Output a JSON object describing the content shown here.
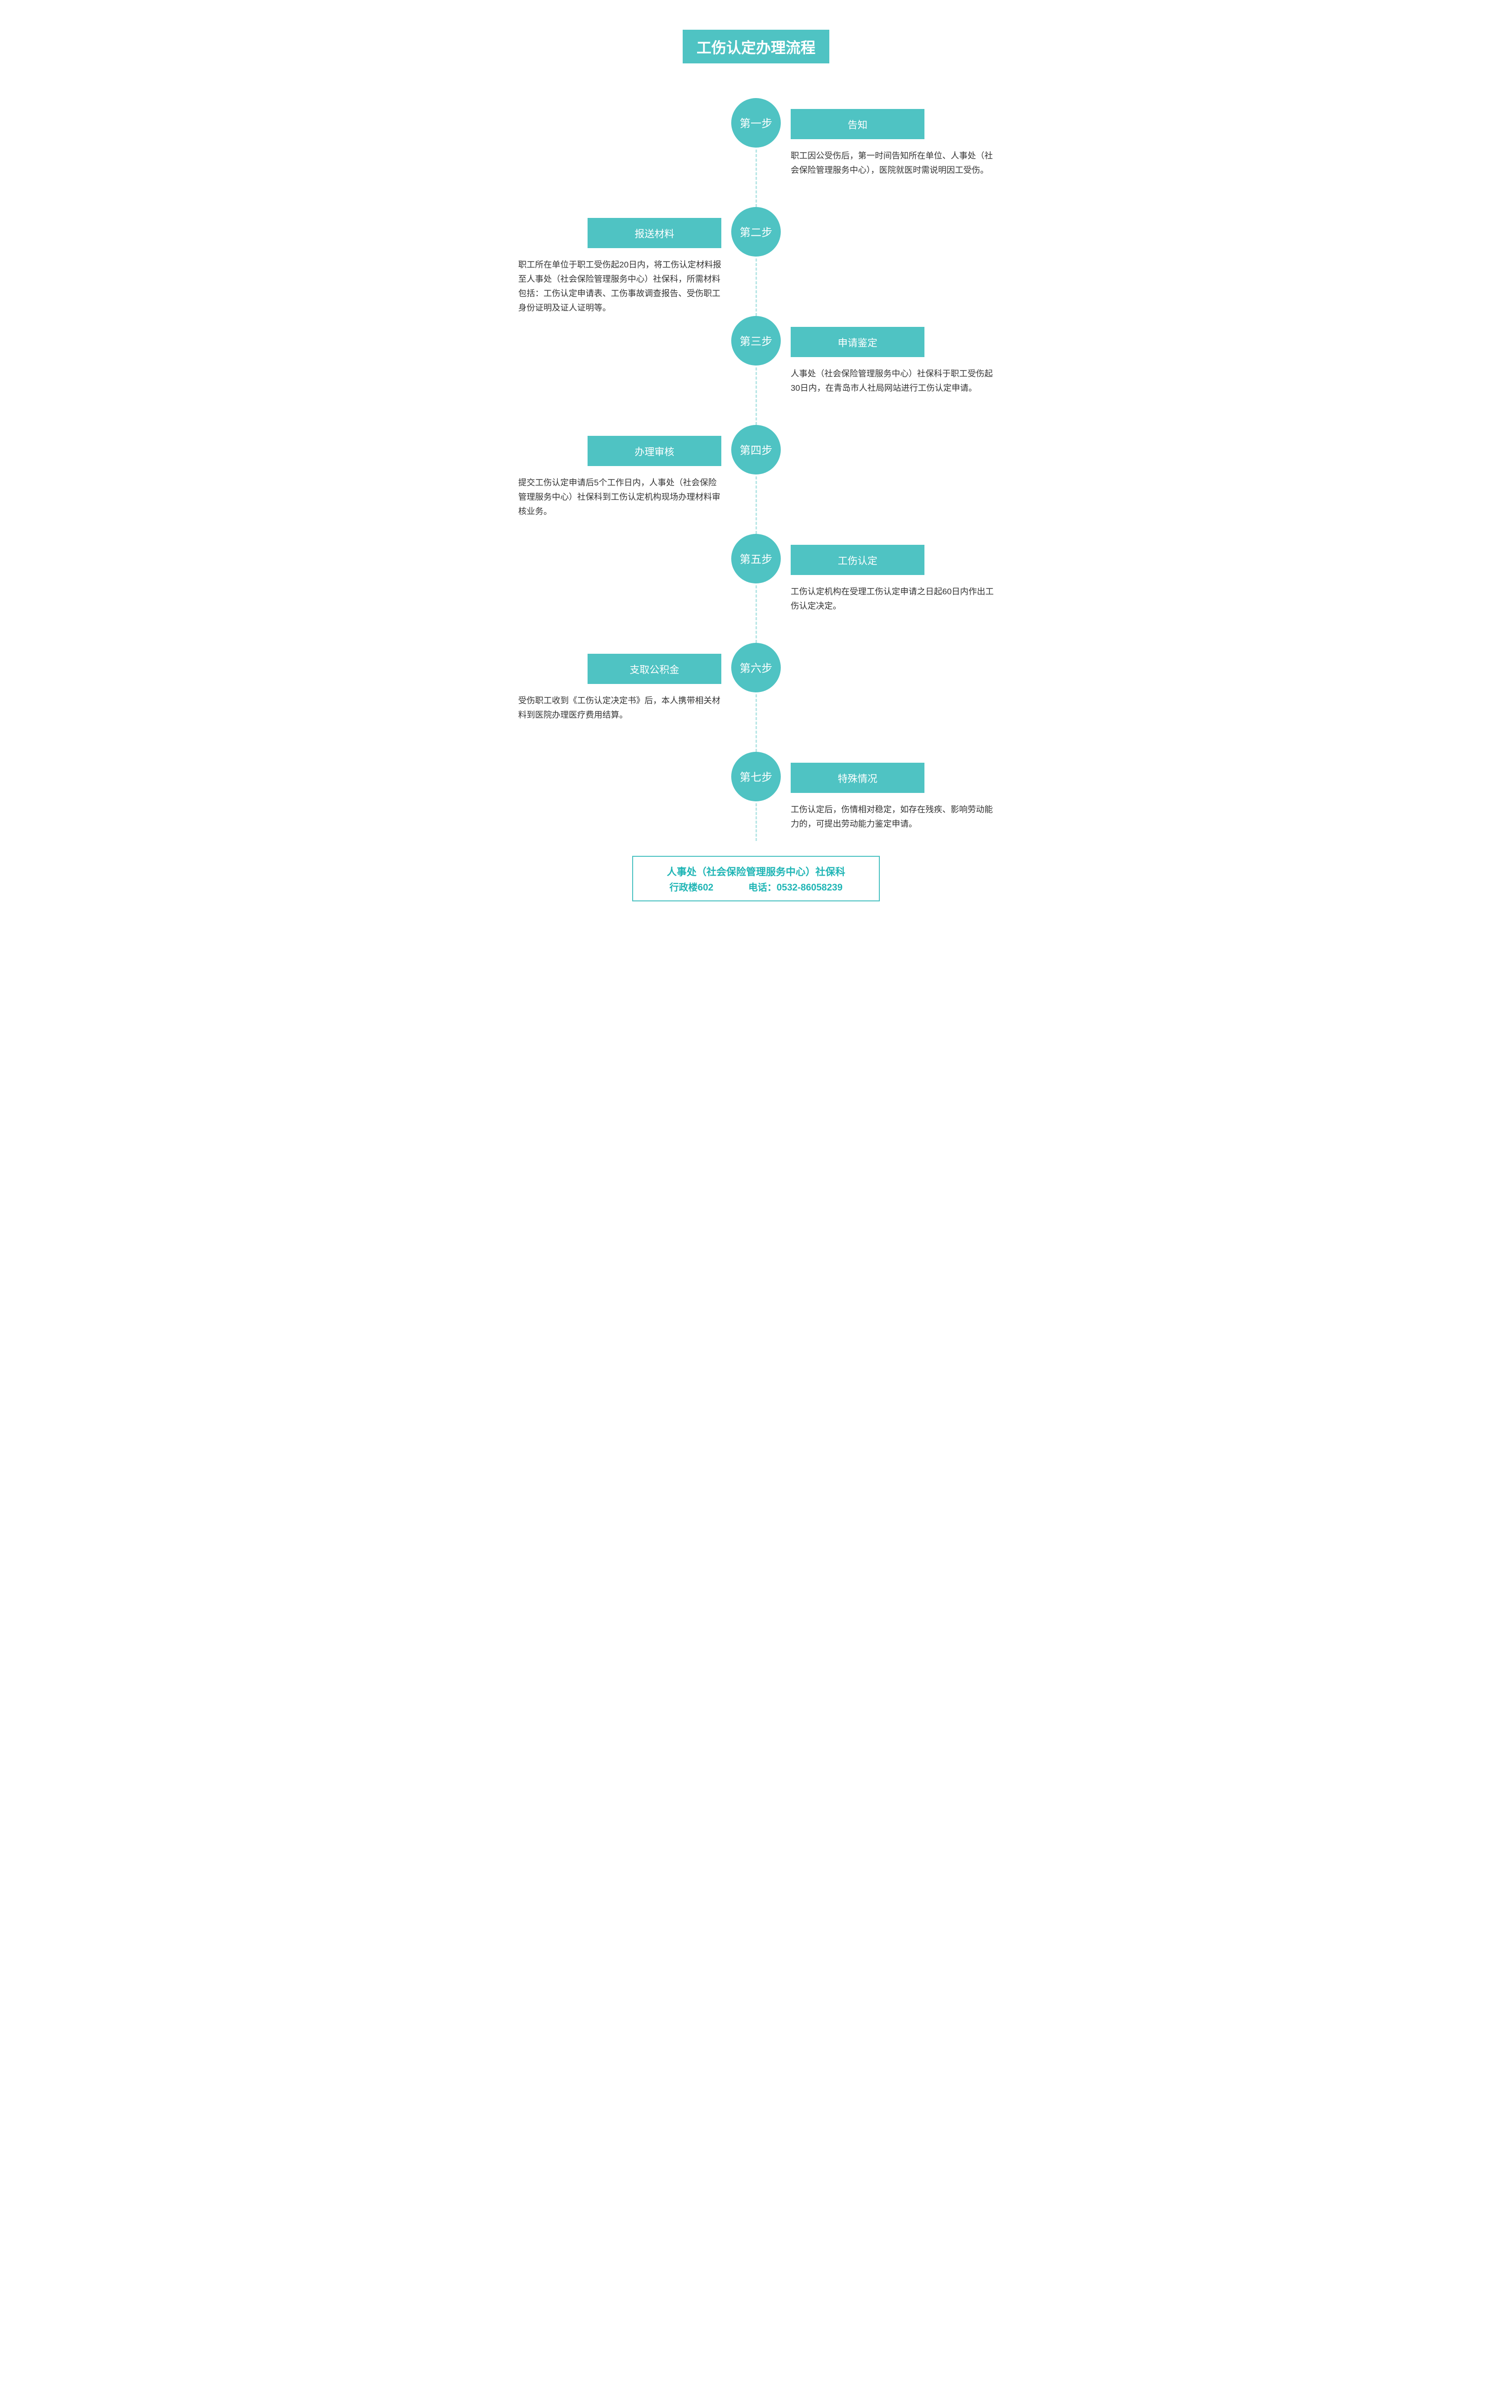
{
  "title": "工伤认定办理流程",
  "colors": {
    "primary": "#4fc3c3",
    "primary_text": "#1fb5b5",
    "dash": "#b8e6e6",
    "body_text": "#333333",
    "white": "#ffffff"
  },
  "typography": {
    "title_fontsize": 30,
    "circle_fontsize": 22,
    "label_fontsize": 20,
    "desc_fontsize": 17,
    "footer_fontsize": 20
  },
  "layout": {
    "type": "vertical-timeline-alternating",
    "circle_diameter": 100,
    "label_bar_width": 270,
    "step_min_height": 220
  },
  "steps": [
    {
      "step_label": "第一步",
      "side": "right",
      "title": "告知",
      "desc": "职工因公受伤后，第一时间告知所在单位、人事处（社会保险管理服务中心），医院就医时需说明因工受伤。"
    },
    {
      "step_label": "第二步",
      "side": "left",
      "title": "报送材料",
      "desc": "职工所在单位于职工受伤起20日内，将工伤认定材料报至人事处（社会保险管理服务中心）社保科，所需材料包括：工伤认定申请表、工伤事故调查报告、受伤职工身份证明及证人证明等。"
    },
    {
      "step_label": "第三步",
      "side": "right",
      "title": "申请鉴定",
      "desc": "人事处（社会保险管理服务中心）社保科于职工受伤起30日内，在青岛市人社局网站进行工伤认定申请。"
    },
    {
      "step_label": "第四步",
      "side": "left",
      "title": "办理审核",
      "desc": "提交工伤认定申请后5个工作日内，人事处（社会保险管理服务中心）社保科到工伤认定机构现场办理材料审核业务。"
    },
    {
      "step_label": "第五步",
      "side": "right",
      "title": "工伤认定",
      "desc": "工伤认定机构在受理工伤认定申请之日起60日内作出工伤认定决定。"
    },
    {
      "step_label": "第六步",
      "side": "left",
      "title": "支取公积金",
      "desc": "受伤职工收到《工伤认定决定书》后，本人携带相关材料到医院办理医疗费用结算。"
    },
    {
      "step_label": "第七步",
      "side": "right",
      "title": "特殊情况",
      "desc": "工伤认定后，伤情相对稳定，如存在残疾、影响劳动能力的，可提出劳动能力鉴定申请。"
    }
  ],
  "footer": {
    "line1": "人事处（社会保险管理服务中心）社保科",
    "location": "行政楼602",
    "phone_label": "电话：",
    "phone": "0532-86058239"
  }
}
